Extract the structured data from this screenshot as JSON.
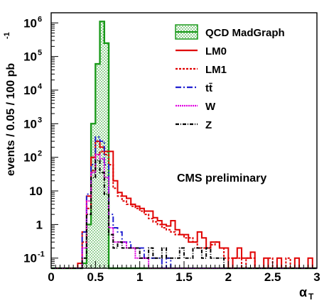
{
  "chart_data": {
    "type": "line",
    "annotation": "CMS preliminary",
    "xlabel": "α",
    "xlabel_sub": "T",
    "ylabel": "events / 0.05 / 100 pb",
    "ylabel_sup": "-1",
    "xlim": [
      0,
      3
    ],
    "ylim": [
      0.05,
      2000000
    ],
    "yscale": "log",
    "x_ticks": [
      0,
      0.5,
      1,
      1.5,
      2,
      2.5,
      3
    ],
    "x_tick_labels": [
      "0",
      "0.5",
      "1",
      "1.5",
      "2",
      "2.5",
      "3"
    ],
    "y_ticks": [
      {
        "value": 0.1,
        "base": "10",
        "exp": "-1"
      },
      {
        "value": 1,
        "base": "1",
        "exp": ""
      },
      {
        "value": 10,
        "base": "10",
        "exp": ""
      },
      {
        "value": 100,
        "base": "10",
        "exp": "2"
      },
      {
        "value": 1000,
        "base": "10",
        "exp": "3"
      },
      {
        "value": 10000,
        "base": "10",
        "exp": "4"
      },
      {
        "value": 100000,
        "base": "10",
        "exp": "5"
      },
      {
        "value": 1000000,
        "base": "10",
        "exp": "6"
      }
    ],
    "grid": false,
    "legend_position": "top-right",
    "bin_width": 0.05,
    "series": [
      {
        "name": "QCD MadGraph",
        "color": "#1a9a1a",
        "dash": "",
        "fill": true,
        "values": [
          0,
          0,
          0,
          0,
          0,
          0,
          0,
          0.07,
          1.0,
          1000,
          60000,
          1100000,
          250000,
          0,
          0,
          0,
          0,
          0,
          0,
          0,
          0,
          0,
          0,
          0,
          0,
          0,
          0,
          0,
          0,
          0,
          0,
          0,
          0,
          0,
          0,
          0,
          0,
          0,
          0,
          0,
          0,
          0,
          0,
          0,
          0,
          0,
          0,
          0,
          0,
          0,
          0,
          0,
          0,
          0,
          0,
          0,
          0,
          0,
          0,
          0
        ]
      },
      {
        "name": "LM0",
        "color": "#e00000",
        "dash": "",
        "fill": false,
        "values": [
          0,
          0,
          0,
          0,
          0,
          0,
          0.07,
          0.6,
          7,
          100,
          300,
          200,
          150,
          150,
          20,
          9,
          7,
          6,
          4,
          3.5,
          3,
          2.5,
          2.5,
          1.6,
          1.3,
          1,
          0.9,
          1.3,
          0.7,
          0.5,
          0.5,
          0.3,
          0.3,
          0.6,
          0.4,
          0.2,
          0.3,
          0.3,
          0.2,
          0.2,
          0,
          0.1,
          0.2,
          0.1,
          0.1,
          0.15,
          0,
          0,
          0.1,
          0,
          0,
          0.1,
          0,
          0,
          0,
          0.1,
          0,
          0,
          0.1,
          0
        ]
      },
      {
        "name": "LM1",
        "color": "#e00000",
        "dash": "3,2",
        "fill": false,
        "values": [
          0,
          0,
          0,
          0,
          0,
          0,
          0,
          0.3,
          3,
          40,
          120,
          150,
          120,
          60,
          12,
          7,
          5,
          4,
          3.5,
          3,
          2.5,
          2,
          1.5,
          1.2,
          1,
          0.8,
          0.7,
          0.6,
          0.5,
          0.5,
          0.4,
          0.4,
          0.3,
          0.2,
          0.2,
          0.2,
          0.25,
          0.3,
          0.2,
          0.1,
          0.1,
          0.1,
          0.1,
          0,
          0.1,
          0.1,
          0.05,
          0.05,
          0,
          0.1,
          0,
          0,
          0,
          0.1,
          0,
          0,
          0,
          0,
          0,
          0
        ]
      },
      {
        "name": "tt̄",
        "color": "#2020d0",
        "dash": "8,3,2,3",
        "fill": false,
        "values": [
          0,
          0,
          0,
          0,
          0,
          0,
          0,
          0.6,
          8,
          60,
          400,
          300,
          60,
          2,
          0.8,
          0.6,
          0.3,
          0.3,
          0.2,
          0.2,
          0.2,
          0.1,
          0.1,
          0.1,
          0.1,
          0,
          0.1,
          0,
          0,
          0,
          0,
          0,
          0,
          0,
          0,
          0,
          0,
          0,
          0,
          0,
          0,
          0,
          0,
          0,
          0,
          0,
          0,
          0,
          0,
          0,
          0,
          0,
          0,
          0,
          0,
          0,
          0,
          0,
          0,
          0
        ]
      },
      {
        "name": "W",
        "color": "#e000e0",
        "dash": "2,1",
        "fill": false,
        "values": [
          0,
          0,
          0,
          0,
          0,
          0,
          0,
          0.2,
          5,
          35,
          120,
          90,
          25,
          0.8,
          0.3,
          0.3,
          0.3,
          0.2,
          0.2,
          0.1,
          0.1,
          0.1,
          0,
          0,
          0,
          0,
          0,
          0,
          0,
          0,
          0,
          0,
          0,
          0,
          0,
          0,
          0,
          0,
          0,
          0,
          0,
          0,
          0,
          0,
          0,
          0,
          0,
          0,
          0,
          0,
          0,
          0,
          0,
          0,
          0,
          0,
          0,
          0,
          0,
          0
        ]
      },
      {
        "name": "Z",
        "color": "#000000",
        "dash": "5,2,1,2",
        "fill": false,
        "values": [
          0,
          0,
          0,
          0,
          0,
          0,
          0,
          0.1,
          2,
          25,
          80,
          35,
          8,
          0.5,
          0.2,
          0.3,
          0.2,
          0.2,
          0.2,
          0.2,
          0.1,
          0.1,
          0.2,
          0.1,
          0.1,
          0.2,
          0.1,
          0.1,
          0.1,
          0.2,
          0.1,
          0.1,
          0.2,
          0.2,
          0.1,
          0.2,
          0.1,
          0.1,
          0.1,
          0,
          0,
          0,
          0,
          0,
          0,
          0,
          0,
          0,
          0,
          0,
          0,
          0,
          0,
          0,
          0,
          0,
          0,
          0,
          0,
          0
        ]
      }
    ]
  }
}
